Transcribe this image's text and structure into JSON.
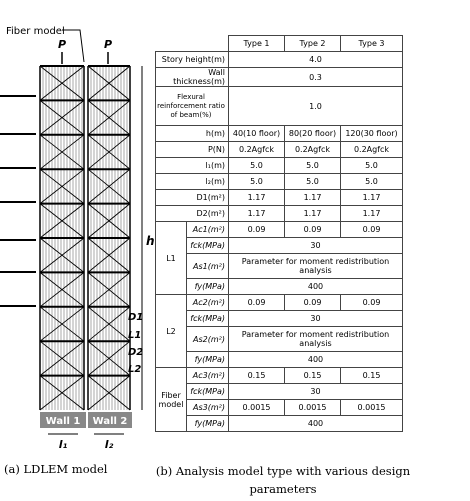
{
  "diagram": {
    "fiber_label": "Fiber model",
    "load_labels": [
      "P",
      "P"
    ],
    "height_label": "h",
    "level_labels": [
      "D1",
      "L1",
      "D2",
      "L2"
    ],
    "wall_labels": [
      "Wall 1",
      "Wall 2"
    ],
    "width_labels": [
      "l₁",
      "l₂"
    ]
  },
  "table": {
    "header": [
      "Type 1",
      "Type 2",
      "Type 3"
    ],
    "rows": [
      {
        "label": "Story height(m)",
        "values": [
          "4.0"
        ]
      },
      {
        "label": "Wall thickness(m)",
        "values": [
          "0.3"
        ]
      },
      {
        "label": "Flexural reinforcement ratio of beam(%)",
        "values": [
          "1.0"
        ]
      },
      {
        "label": "h(m)",
        "values": [
          "40(10 floor)",
          "80(20 floor)",
          "120(30 floor)"
        ]
      },
      {
        "label": "P(N)",
        "values": [
          "0.2Agfck",
          "0.2Agfck",
          "0.2Agfck"
        ]
      },
      {
        "label": "l₁(m)",
        "values": [
          "5.0",
          "5.0",
          "5.0"
        ]
      },
      {
        "label": "l₂(m)",
        "values": [
          "5.0",
          "5.0",
          "5.0"
        ]
      },
      {
        "label": "D1(m²)",
        "values": [
          "1.17",
          "1.17",
          "1.17"
        ]
      },
      {
        "label": "D2(m²)",
        "values": [
          "1.17",
          "1.17",
          "1.17"
        ]
      }
    ],
    "groups": [
      {
        "label": "L1",
        "rows": [
          {
            "label": "Ac1(m²)",
            "values": [
              "0.09",
              "0.09",
              "0.09"
            ]
          },
          {
            "label": "fck(MPa)",
            "values": [
              "30"
            ]
          },
          {
            "label": "As1(m²)",
            "values": [
              "Parameter for moment redistribution analysis"
            ]
          },
          {
            "label": "fy(MPa)",
            "values": [
              "400"
            ]
          }
        ]
      },
      {
        "label": "L2",
        "rows": [
          {
            "label": "Ac2(m²)",
            "values": [
              "0.09",
              "0.09",
              "0.09"
            ]
          },
          {
            "label": "fck(MPa)",
            "values": [
              "30"
            ]
          },
          {
            "label": "As2(m²)",
            "values": [
              "Parameter for moment redistribution analysis"
            ]
          },
          {
            "label": "fy(MPa)",
            "values": [
              "400"
            ]
          }
        ]
      },
      {
        "label": "Fiber model",
        "rows": [
          {
            "label": "Ac3(m²)",
            "values": [
              "0.15",
              "0.15",
              "0.15"
            ]
          },
          {
            "label": "fck(MPa)",
            "values": [
              "30"
            ]
          },
          {
            "label": "As3(m²)",
            "values": [
              "0.0015",
              "0.0015",
              "0.0015"
            ]
          },
          {
            "label": "fy(MPa)",
            "values": [
              "400"
            ]
          }
        ]
      }
    ]
  },
  "captions": [
    "(a) LDLEM model",
    "(b) Analysis model type with various design parameters"
  ]
}
